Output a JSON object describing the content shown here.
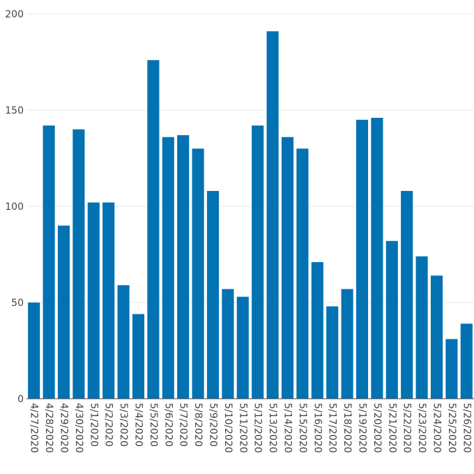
{
  "chart_data": {
    "type": "bar",
    "title": "",
    "xlabel": "",
    "ylabel": "",
    "ylim": [
      0,
      200
    ],
    "yticks": [
      0,
      50,
      100,
      150,
      200
    ],
    "grid": true,
    "bar_color": "#0272b3",
    "categories": [
      "4/27/2020",
      "4/28/2020",
      "4/29/2020",
      "4/30/2020",
      "5/1/2020",
      "5/2/2020",
      "5/3/2020",
      "5/4/2020",
      "5/5/2020",
      "5/6/2020",
      "5/7/2020",
      "5/8/2020",
      "5/9/2020",
      "5/10/2020",
      "5/11/2020",
      "5/12/2020",
      "5/13/2020",
      "5/14/2020",
      "5/15/2020",
      "5/16/2020",
      "5/17/2020",
      "5/18/2020",
      "5/19/2020",
      "5/20/2020",
      "5/21/2020",
      "5/22/2020",
      "5/23/2020",
      "5/24/2020",
      "5/25/2020",
      "5/26/2020"
    ],
    "values": [
      50,
      142,
      90,
      140,
      102,
      102,
      59,
      44,
      176,
      136,
      137,
      130,
      108,
      57,
      53,
      142,
      191,
      136,
      130,
      71,
      48,
      57,
      145,
      146,
      82,
      108,
      74,
      64,
      31,
      39
    ]
  }
}
